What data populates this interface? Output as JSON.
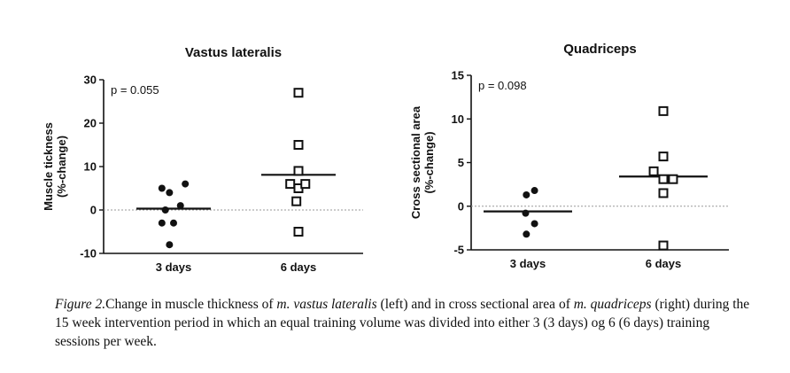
{
  "chart_data": [
    {
      "type": "scatter",
      "title": "Vastus lateralis",
      "ylabel": "Muscle tickness\n(%-change)",
      "ylim": [
        -10,
        30
      ],
      "yticks": [
        -10,
        0,
        10,
        20,
        30
      ],
      "categories": [
        "3 days",
        "6 days"
      ],
      "annotation": "p = 0.055",
      "grid": false,
      "series": [
        {
          "category": "3 days",
          "marker": "filled-circle",
          "mean": 0.3,
          "points": [
            [
              -0.17,
              5
            ],
            [
              0.17,
              6
            ],
            [
              -0.06,
              4
            ],
            [
              0.1,
              1
            ],
            [
              -0.12,
              0
            ],
            [
              -0.17,
              -3
            ],
            [
              0.0,
              -3
            ],
            [
              -0.06,
              -8
            ]
          ]
        },
        {
          "category": "6 days",
          "marker": "open-square",
          "mean": 8.1,
          "points": [
            [
              0.0,
              27
            ],
            [
              0.0,
              15
            ],
            [
              0.0,
              9
            ],
            [
              -0.12,
              6
            ],
            [
              0.0,
              5
            ],
            [
              0.1,
              6
            ],
            [
              -0.03,
              2
            ],
            [
              0.0,
              -5
            ]
          ]
        }
      ]
    },
    {
      "type": "scatter",
      "title": "Quadriceps",
      "ylabel": "Cross sectional area\n(%-change)",
      "ylim": [
        -5,
        15
      ],
      "yticks": [
        -5,
        0,
        5,
        10,
        15
      ],
      "categories": [
        "3 days",
        "6 days"
      ],
      "annotation": "p = 0.098",
      "grid": false,
      "series": [
        {
          "category": "3 days",
          "marker": "filled-circle",
          "mean": -0.6,
          "points": [
            [
              -0.02,
              1.3
            ],
            [
              0.09,
              1.8
            ],
            [
              -0.03,
              -0.8
            ],
            [
              0.09,
              -2.0
            ],
            [
              -0.02,
              -3.2
            ]
          ]
        },
        {
          "category": "6 days",
          "marker": "open-square",
          "mean": 3.4,
          "points": [
            [
              0.0,
              10.9
            ],
            [
              0.0,
              5.7
            ],
            [
              -0.13,
              4.0
            ],
            [
              0.0,
              3.1
            ],
            [
              0.13,
              3.1
            ],
            [
              0.0,
              1.5
            ],
            [
              0.0,
              -4.5
            ]
          ]
        }
      ]
    }
  ],
  "caption": {
    "label": "Figure 2.",
    "t1": "Change in muscle thickness of ",
    "m1": "m. vastus lateralis",
    "t2": " (left) and in cross sectional area of ",
    "m2": "m. quadriceps",
    "t3": " (right) during the 15 week intervention period in which an equal training volume was divided into either 3 (3 days) og 6 (6 days) training sessions per week."
  }
}
